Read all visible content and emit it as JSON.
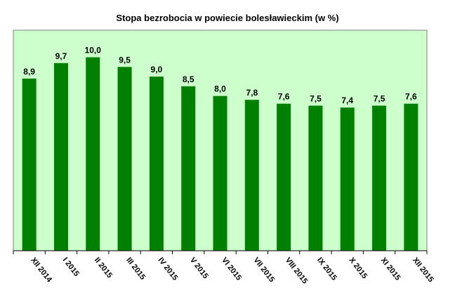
{
  "chart_data": {
    "type": "bar",
    "title": "Stopa bezrobocia w powiecie bolesławieckim (w %)",
    "categories": [
      "XII 2014",
      "I 2015",
      "II 2015",
      "III 2015",
      "IV 2015",
      "V 2015",
      "VI 2015",
      "VII 2015",
      "VIII 2015",
      "IX 2015",
      "X 2015",
      "XI 2015",
      "XII 2015"
    ],
    "values": [
      8.9,
      9.7,
      10.0,
      9.5,
      9.0,
      8.5,
      8.0,
      7.8,
      7.6,
      7.5,
      7.4,
      7.5,
      7.6
    ],
    "value_labels": [
      "8,9",
      "9,7",
      "10,0",
      "9,5",
      "9,0",
      "8,5",
      "8,0",
      "7,8",
      "7,6",
      "7,5",
      "7,4",
      "7,5",
      "7,6"
    ],
    "ylim": [
      0,
      11.4
    ],
    "grid": false,
    "legend": "none",
    "colors": {
      "plot_background": "#ccffcc",
      "bar_fill": "#008000",
      "axis": "#808080"
    }
  }
}
